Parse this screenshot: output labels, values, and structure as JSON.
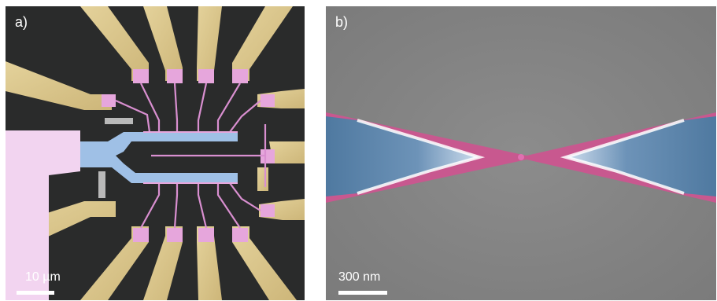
{
  "panels": [
    {
      "label": "a)",
      "scale_label": "10 µm"
    },
    {
      "label": "b)",
      "scale_label": "300 nm"
    }
  ],
  "colors": {
    "gold_pads": "#d8c48a",
    "pink_contacts": "#e6a6dc",
    "blue_channel": "#9fc0e6",
    "magenta_constriction": "#c8588f",
    "sem_background": "#8a8a8a",
    "optical_background": "#2a2b2b"
  }
}
